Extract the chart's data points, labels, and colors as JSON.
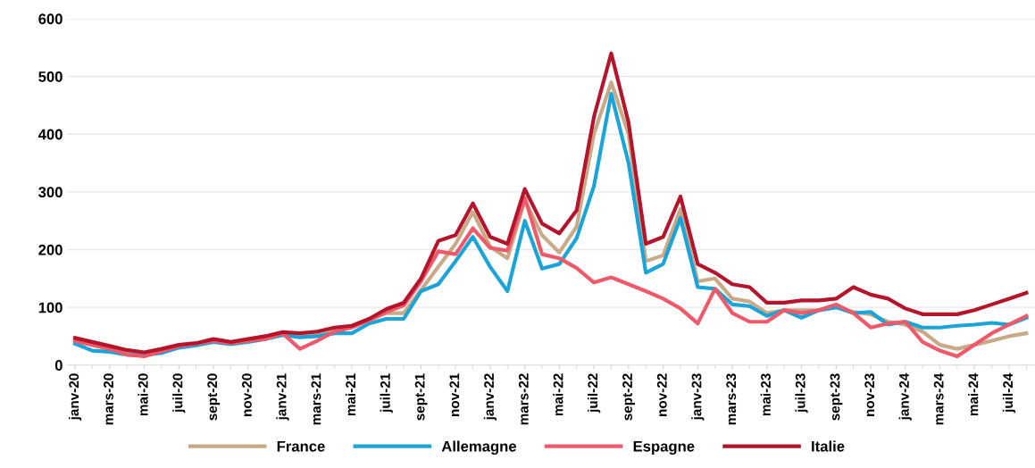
{
  "chart_data": {
    "type": "line",
    "categories": [
      "janv-20",
      null,
      "mars-20",
      null,
      "mai-20",
      null,
      "juil-20",
      null,
      "sept-20",
      null,
      "nov-20",
      null,
      "janv-21",
      null,
      "mars-21",
      null,
      "mai-21",
      null,
      "juil-21",
      null,
      "sept-21",
      null,
      "nov-21",
      null,
      "janv-22",
      null,
      "mars-22",
      null,
      "mai-22",
      null,
      "juil-22",
      null,
      "sept-22",
      null,
      "nov-22",
      null,
      "janv-23",
      null,
      "mars-23",
      null,
      "mai-23",
      null,
      "juil-23",
      null,
      "sept-23",
      null,
      "nov-23",
      null,
      "janv-24",
      null,
      "mars-24",
      null,
      "mai-24",
      null,
      "juil-24",
      null
    ],
    "series": [
      {
        "name": "France",
        "color": "#c9aa88",
        "values": [
          42,
          35,
          28,
          22,
          18,
          25,
          32,
          36,
          43,
          38,
          42,
          47,
          54,
          52,
          55,
          60,
          65,
          78,
          90,
          90,
          130,
          170,
          210,
          265,
          205,
          185,
          285,
          225,
          195,
          240,
          400,
          490,
          400,
          180,
          190,
          270,
          145,
          150,
          115,
          110,
          90,
          95,
          95,
          95,
          100,
          92,
          88,
          75,
          70,
          58,
          35,
          28,
          35,
          42,
          50,
          55
        ]
      },
      {
        "name": "Allemagne",
        "color": "#1ba4d8",
        "values": [
          37,
          25,
          23,
          18,
          17,
          21,
          30,
          34,
          40,
          36,
          40,
          45,
          52,
          48,
          50,
          55,
          55,
          72,
          80,
          80,
          128,
          140,
          180,
          222,
          170,
          128,
          250,
          167,
          175,
          220,
          310,
          470,
          350,
          160,
          175,
          255,
          135,
          132,
          105,
          102,
          85,
          95,
          82,
          95,
          100,
          90,
          92,
          70,
          75,
          65,
          65,
          68,
          70,
          73,
          70,
          82
        ]
      },
      {
        "name": "Espagne",
        "color": "#ee5a6a",
        "values": [
          42,
          35,
          28,
          18,
          15,
          24,
          33,
          37,
          42,
          38,
          42,
          45,
          55,
          28,
          42,
          58,
          65,
          78,
          92,
          103,
          145,
          197,
          192,
          237,
          203,
          198,
          290,
          192,
          185,
          168,
          143,
          152,
          140,
          128,
          115,
          98,
          72,
          132,
          90,
          75,
          75,
          95,
          90,
          95,
          105,
          90,
          65,
          72,
          75,
          40,
          25,
          15,
          35,
          55,
          70,
          85
        ]
      },
      {
        "name": "Italie",
        "color": "#b5152b",
        "values": [
          47,
          40,
          33,
          26,
          22,
          28,
          35,
          38,
          45,
          40,
          45,
          50,
          57,
          55,
          58,
          65,
          68,
          80,
          97,
          108,
          150,
          215,
          225,
          280,
          222,
          210,
          305,
          245,
          228,
          268,
          430,
          540,
          420,
          210,
          222,
          292,
          175,
          160,
          140,
          135,
          108,
          108,
          112,
          112,
          115,
          135,
          122,
          115,
          98,
          88,
          88,
          88,
          95,
          105,
          115,
          125
        ]
      }
    ],
    "ylim": [
      0,
      600
    ],
    "yticks": [
      0,
      100,
      200,
      300,
      400,
      500,
      600
    ],
    "grid": "y",
    "legend": "bottom",
    "line_style": "solid",
    "marker": "none"
  }
}
